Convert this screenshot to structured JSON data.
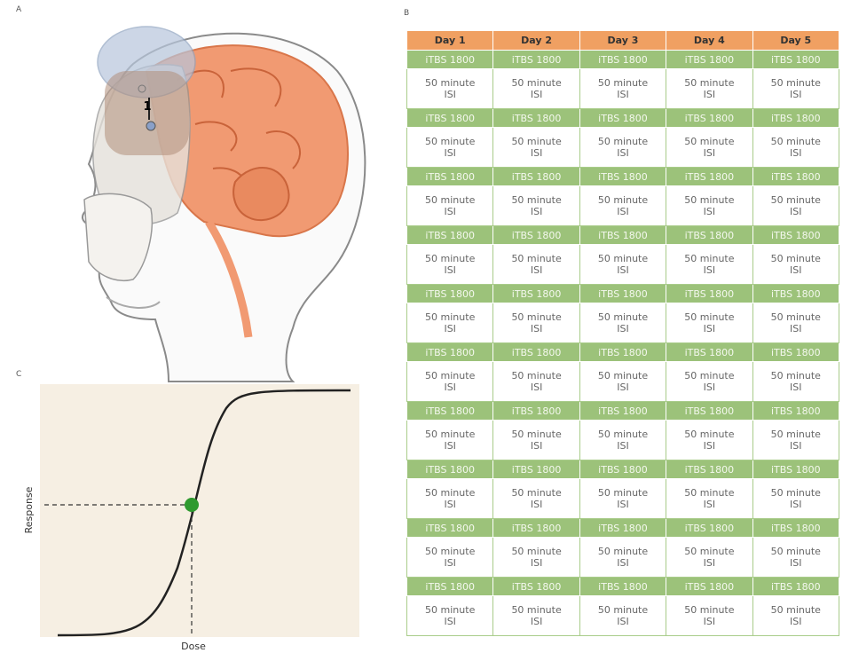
{
  "panels": {
    "a": {
      "label": "A",
      "marker": "1"
    },
    "b": {
      "label": "B"
    },
    "c": {
      "label": "C",
      "y_label": "Response",
      "x_label": "Dose"
    }
  },
  "table": {
    "header": [
      "Day 1",
      "Day 2",
      "Day 3",
      "Day 4",
      "Day 5"
    ],
    "rows": [
      [
        "iTBS 1800",
        "iTBS 1800",
        "iTBS 1800",
        "iTBS 1800",
        "iTBS 1800"
      ],
      [
        "50 minute\nISI",
        "50 minute\nISI",
        "50 minute\nISI",
        "50 minute\nISI",
        "50 minute\nISI"
      ],
      [
        "iTBS 1800",
        "iTBS 1800",
        "iTBS 1800",
        "iTBS 1800",
        "iTBS 1800"
      ],
      [
        "50 minute\nISI",
        "50 minute\nISI",
        "50 minute\nISI",
        "50 minute\nISI",
        "50 minute\nISI"
      ],
      [
        "iTBS 1800",
        "iTBS 1800",
        "iTBS 1800",
        "iTBS 1800",
        "iTBS 1800"
      ],
      [
        "50 minute\nISI",
        "50 minute\nISI",
        "50 minute\nISI",
        "50 minute\nISI",
        "50 minute\nISI"
      ],
      [
        "iTBS 1800",
        "iTBS 1800",
        "iTBS 1800",
        "iTBS 1800",
        "iTBS 1800"
      ],
      [
        "50 minute\nISI",
        "50 minute\nISI",
        "50 minute\nISI",
        "50 minute\nISI",
        "50 minute\nISI"
      ],
      [
        "iTBS 1800",
        "iTBS 1800",
        "iTBS 1800",
        "iTBS 1800",
        "iTBS 1800"
      ],
      [
        "50 minute\nISI",
        "50 minute\nISI",
        "50 minute\nISI",
        "50 minute\nISI",
        "50 minute\nISI"
      ],
      [
        "iTBS 1800",
        "iTBS 1800",
        "iTBS 1800",
        "iTBS 1800",
        "iTBS 1800"
      ],
      [
        "50 minute\nISI",
        "50 minute\nISI",
        "50 minute\nISI",
        "50 minute\nISI",
        "50 minute\nISI"
      ],
      [
        "iTBS 1800",
        "iTBS 1800",
        "iTBS 1800",
        "iTBS 1800",
        "iTBS 1800"
      ],
      [
        "50 minute\nISI",
        "50 minute\nISI",
        "50 minute\nISI",
        "50 minute\nISI",
        "50 minute\nISI"
      ],
      [
        "iTBS 1800",
        "iTBS 1800",
        "iTBS 1800",
        "iTBS 1800",
        "iTBS 1800"
      ],
      [
        "50 minute\nISI",
        "50 minute\nISI",
        "50 minute\nISI",
        "50 minute\nISI",
        "50 minute\nISI"
      ],
      [
        "iTBS 1800",
        "iTBS 1800",
        "iTBS 1800",
        "iTBS 1800",
        "iTBS 1800"
      ],
      [
        "50 minute\nISI",
        "50 minute\nISI",
        "50 minute\nISI",
        "50 minute\nISI",
        "50 minute\nISI"
      ],
      [
        "iTBS 1800",
        "iTBS 1800",
        "iTBS 1800",
        "iTBS 1800",
        "iTBS 1800"
      ],
      [
        "50 minute\nISI",
        "50 minute\nISI",
        "50 minute\nISI",
        "50 minute\nISI",
        "50 minute\nISI"
      ]
    ]
  }
}
